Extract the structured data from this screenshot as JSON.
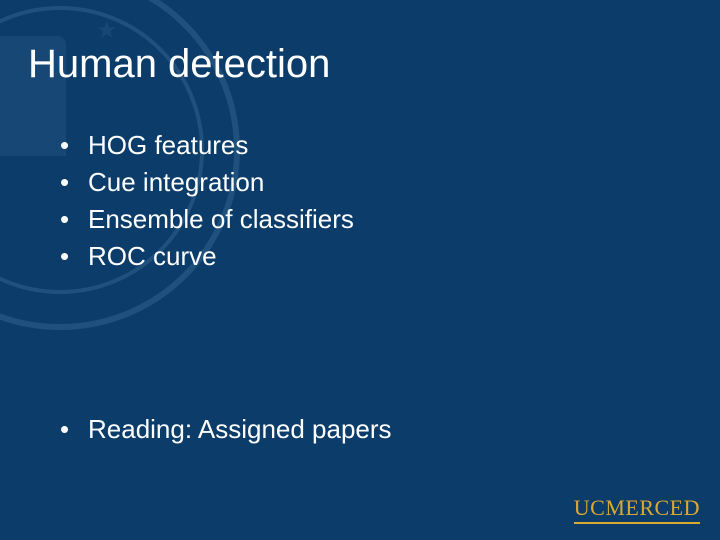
{
  "slide": {
    "title": "Human detection",
    "bullets_top": [
      "HOG features",
      "Cue integration",
      "Ensemble of classifiers",
      "ROC curve"
    ],
    "bullets_bottom": [
      "Reading: Assigned papers"
    ],
    "bullet_char": "•"
  },
  "style": {
    "background_color": "#0b3c6a",
    "text_color": "#ffffff",
    "title_fontsize": 40,
    "body_fontsize": 26,
    "seal_color": "#2a5a86",
    "logo_color": "#d9a930"
  },
  "logo": {
    "prefix": "UC",
    "suffix": "MERCED"
  }
}
